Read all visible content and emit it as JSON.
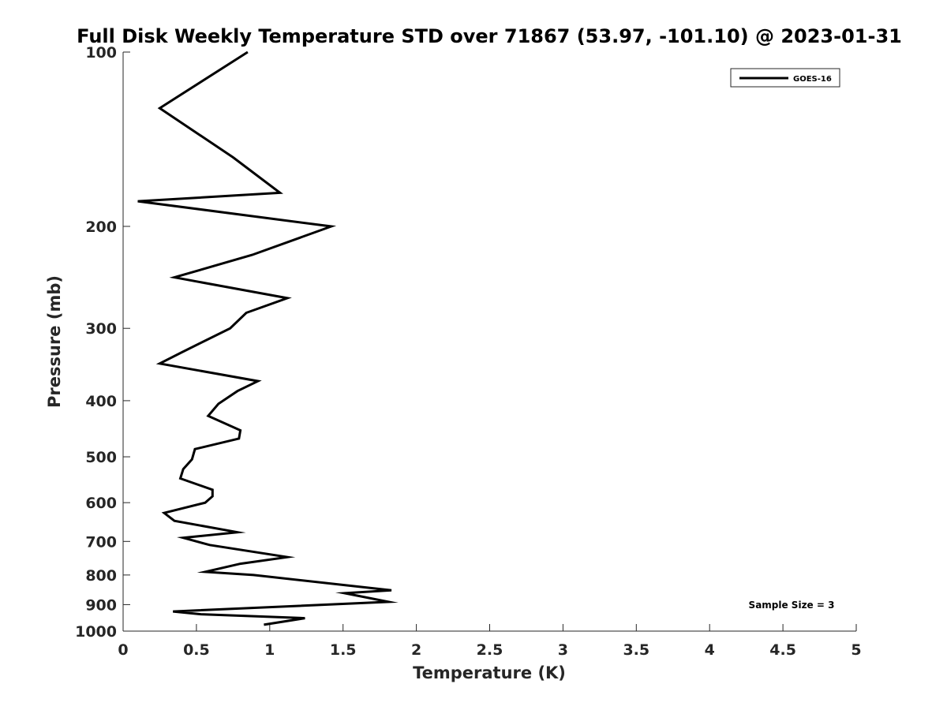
{
  "chart_data": {
    "type": "line",
    "title": "Full Disk Weekly Temperature STD over 71867 (53.97, -101.10) @ 2023-01-31",
    "xlabel": "Temperature (K)",
    "ylabel": "Pressure (mb)",
    "xlim": [
      0,
      5
    ],
    "ylim": [
      100,
      1000
    ],
    "y_scale": "log",
    "y_reversed": true,
    "x_ticks": [
      "0",
      "0.5",
      "1",
      "1.5",
      "2",
      "2.5",
      "3",
      "3.5",
      "4",
      "4.5",
      "5"
    ],
    "y_ticks": [
      "100",
      "200",
      "300",
      "400",
      "500",
      "600",
      "700",
      "800",
      "900",
      "1000"
    ],
    "grid": false,
    "legend": {
      "position": "top-right",
      "entries": [
        "GOES-16"
      ]
    },
    "annotations": [
      "Sample Size = 3"
    ],
    "series": [
      {
        "name": "GOES-16",
        "color": "#000000",
        "points": [
          [
            0.85,
            100
          ],
          [
            0.25,
            125
          ],
          [
            0.75,
            152
          ],
          [
            1.07,
            175
          ],
          [
            0.1,
            181
          ],
          [
            1.42,
            200
          ],
          [
            0.88,
            224
          ],
          [
            0.35,
            245
          ],
          [
            1.12,
            266
          ],
          [
            0.84,
            282
          ],
          [
            0.73,
            300
          ],
          [
            0.4,
            330
          ],
          [
            0.25,
            345
          ],
          [
            0.92,
            370
          ],
          [
            0.78,
            385
          ],
          [
            0.65,
            405
          ],
          [
            0.58,
            425
          ],
          [
            0.8,
            450
          ],
          [
            0.79,
            465
          ],
          [
            0.49,
            485
          ],
          [
            0.47,
            505
          ],
          [
            0.41,
            525
          ],
          [
            0.39,
            545
          ],
          [
            0.61,
            570
          ],
          [
            0.61,
            585
          ],
          [
            0.56,
            600
          ],
          [
            0.28,
            625
          ],
          [
            0.35,
            645
          ],
          [
            0.78,
            675
          ],
          [
            0.41,
            690
          ],
          [
            0.59,
            710
          ],
          [
            1.12,
            745
          ],
          [
            0.8,
            765
          ],
          [
            0.56,
            790
          ],
          [
            0.89,
            800
          ],
          [
            1.83,
            850
          ],
          [
            1.51,
            860
          ],
          [
            1.81,
            890
          ],
          [
            0.34,
            925
          ],
          [
            0.53,
            935
          ],
          [
            1.24,
            950
          ],
          [
            0.96,
            975
          ]
        ]
      }
    ]
  }
}
